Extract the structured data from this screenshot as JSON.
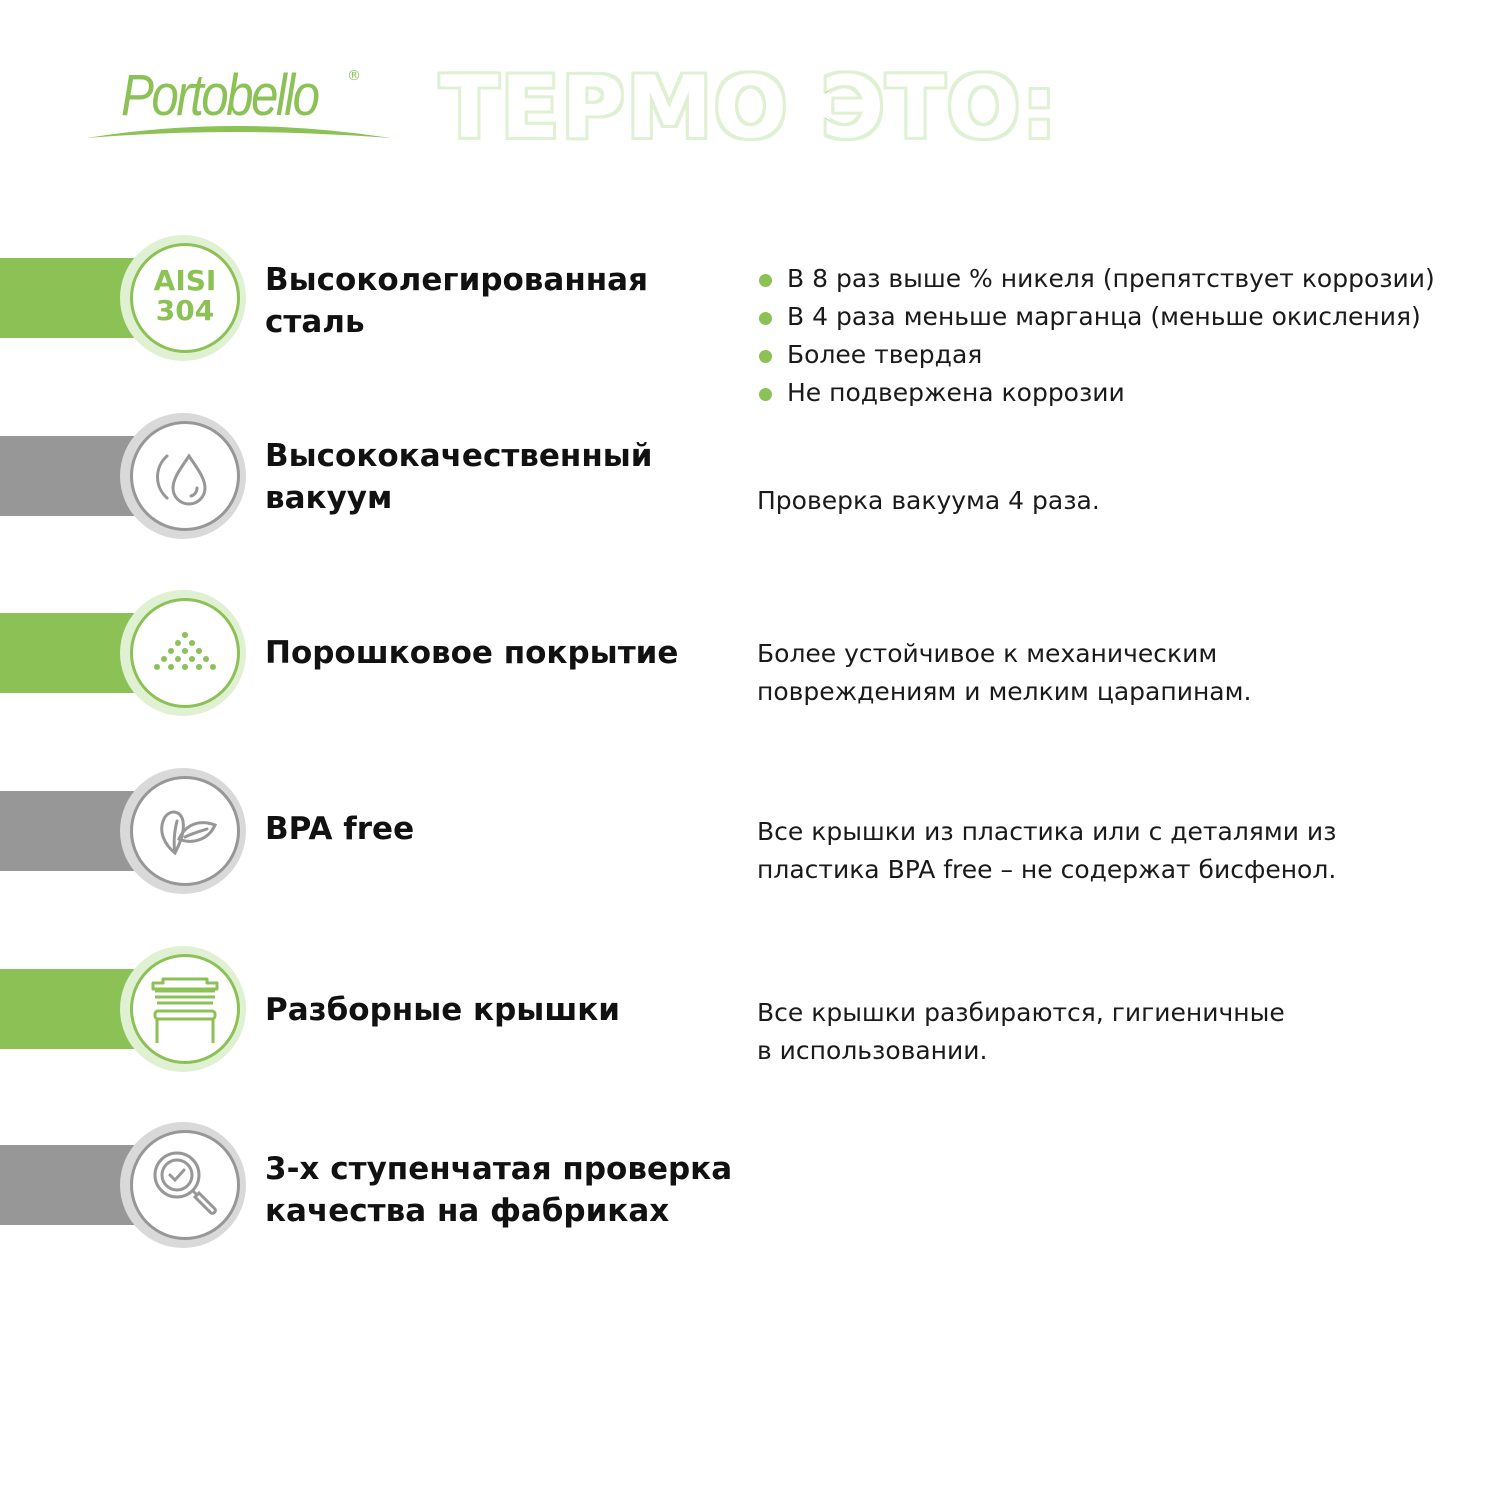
{
  "brand": {
    "logo_text": "Portobello",
    "registered_mark": "®"
  },
  "headline": "ТЕРМО ЭТО:",
  "colors": {
    "green": "#8bc155",
    "green_light": "#e0f0d3",
    "gray": "#979797",
    "gray_light": "#d9d9d9"
  },
  "features": [
    {
      "title_line1": "Высоколегированная",
      "title_line2": "сталь",
      "icon": "aisi-304-badge",
      "icon_text_line1": "AISI",
      "icon_text_line2": "304",
      "accent": "green",
      "bullets": [
        "В 8 раз выше % никеля (препятствует коррозии)",
        "В 4 раза меньше марганца (меньше окисления)",
        "Более твердая",
        "Не подвержена коррозии"
      ]
    },
    {
      "title_line1": "Высококачественный",
      "title_line2": "вакуум",
      "icon": "vacuum-drop-icon",
      "accent": "gray",
      "desc_line1": "Проверка вакуума 4 раза."
    },
    {
      "title_line1": "Порошковое покрытие",
      "icon": "powder-dots-icon",
      "accent": "green",
      "desc_line1": "Более устойчивое к механическим",
      "desc_line2": "повреждениям и мелким царапинам."
    },
    {
      "title_line1": "BPA free",
      "icon": "leaf-icon",
      "accent": "gray",
      "desc_line1": "Все крышки из пластика или с деталями из",
      "desc_line2": "пластика BPA free – не содержат бисфенол."
    },
    {
      "title_line1": "Разборные крышки",
      "icon": "lid-icon",
      "accent": "green",
      "desc_line1": "Все крышки разбираются, гигиеничные",
      "desc_line2": "в использовании."
    },
    {
      "title_line1": "3-х ступенчатая проверка",
      "title_line2": "качества на фабриках",
      "icon": "magnifier-check-icon",
      "accent": "gray"
    }
  ]
}
